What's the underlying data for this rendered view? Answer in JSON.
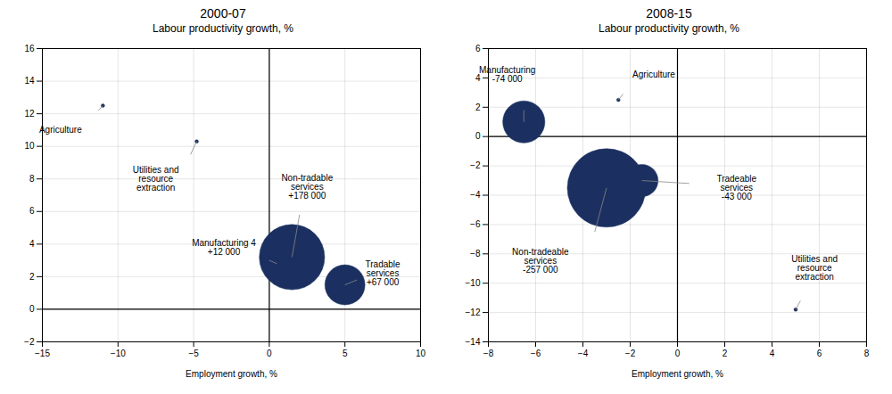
{
  "chart_data": [
    {
      "type": "bubble",
      "title": "2000-07",
      "ylabel": "Labour productivity growth, %",
      "xlabel": "Employment growth, %",
      "xlim": [
        -15,
        10
      ],
      "ylim": [
        -2,
        16
      ],
      "xticks": [
        -15,
        -10,
        -5,
        0,
        5,
        10
      ],
      "yticks": [
        -2,
        0,
        2,
        4,
        6,
        8,
        10,
        12,
        14,
        16
      ],
      "grid": true,
      "color": "#1b3060",
      "points": [
        {
          "x": -11.0,
          "y": 12.5,
          "size": 500,
          "label": "Agriculture",
          "label_x": -13.8,
          "label_y": 11.0,
          "line_x": -11.3,
          "line_y": 12.2
        },
        {
          "x": -4.8,
          "y": 10.3,
          "size": 500,
          "label": "Utilities and\nresource\nextraction",
          "label_x": -7.5,
          "label_y": 8.0,
          "line_x": -5.2,
          "line_y": 9.5
        },
        {
          "x": 1.5,
          "y": 3.2,
          "size": 178000,
          "label": "Non-tradable\nservices\n+178 000",
          "label_x": 2.5,
          "label_y": 7.5,
          "line_x": 2.0,
          "line_y": 5.8
        },
        {
          "x": 0.5,
          "y": 2.8,
          "size": 12000,
          "label": "Manufacturing 4\n+12 000",
          "label_x": -3.0,
          "label_y": 3.8,
          "line_x": 0.0,
          "line_y": 3.0
        },
        {
          "x": 5.0,
          "y": 1.5,
          "size": 67000,
          "label": "Tradable\nservices\n+67 000",
          "label_x": 7.5,
          "label_y": 2.2,
          "line_x": 5.8,
          "line_y": 1.8
        }
      ]
    },
    {
      "type": "bubble",
      "title": "2008-15",
      "ylabel": "Labour productivity growth, %",
      "xlabel": "Employment growth, %",
      "xlim": [
        -8,
        8
      ],
      "ylim": [
        -14,
        6
      ],
      "xticks": [
        -8,
        -6,
        -4,
        -2,
        0,
        2,
        4,
        6,
        8
      ],
      "yticks": [
        -14,
        -12,
        -10,
        -8,
        -6,
        -4,
        -2,
        0,
        2,
        4,
        6
      ],
      "grid": true,
      "color": "#1b3060",
      "points": [
        {
          "x": -6.5,
          "y": 1.0,
          "size": 74000,
          "label": "Manufacturing\n-74 000",
          "label_x": -7.2,
          "label_y": 4.2,
          "line_x": -6.5,
          "line_y": 1.8
        },
        {
          "x": -2.5,
          "y": 2.5,
          "size": 500,
          "label": "Agriculture",
          "label_x": -1.0,
          "label_y": 4.2,
          "line_x": -2.3,
          "line_y": 2.9
        },
        {
          "x": -3.0,
          "y": -3.5,
          "size": 257000,
          "label": "Non-tradeable\nservices\n-257 000",
          "label_x": -5.8,
          "label_y": -8.5,
          "line_x": -3.5,
          "line_y": -6.5
        },
        {
          "x": -1.5,
          "y": -3.0,
          "size": 43000,
          "label": "Tradeable\nservices\n-43 000",
          "label_x": 2.5,
          "label_y": -3.5,
          "line_x": 0.5,
          "line_y": -3.2
        },
        {
          "x": 5.0,
          "y": -11.8,
          "size": 500,
          "label": "Utilities and\nresource\nextraction",
          "label_x": 5.8,
          "label_y": -9.0,
          "line_x": 5.2,
          "line_y": -11.2
        }
      ]
    }
  ]
}
